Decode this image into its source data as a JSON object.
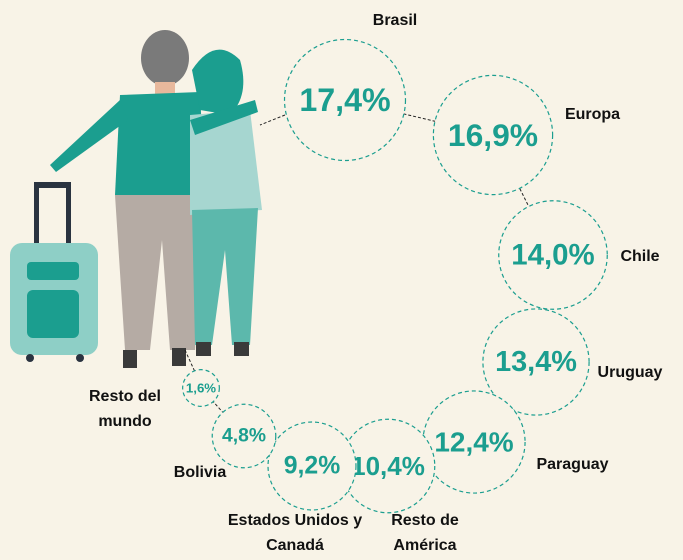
{
  "chart_data": {
    "type": "bubble",
    "categories": [
      "Brasil",
      "Europa",
      "Chile",
      "Uruguay",
      "Paraguay",
      "Resto de América",
      "Estados Unidos y Canadá",
      "Bolivia",
      "Resto del mundo"
    ],
    "values": [
      17.4,
      16.9,
      14.0,
      13.4,
      12.4,
      10.4,
      9.2,
      4.8,
      1.6
    ],
    "value_labels": [
      "17,4%",
      "16,9%",
      "14,0%",
      "13,4%",
      "12,4%",
      "10,4%",
      "9,2%",
      "4,8%",
      "1,6%"
    ],
    "color": "#1b9e8f"
  }
}
